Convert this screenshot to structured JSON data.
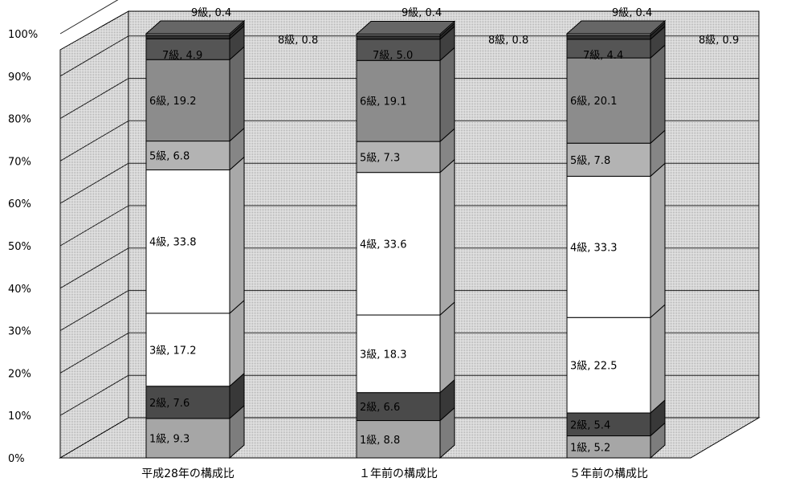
{
  "chart_data": {
    "type": "bar",
    "stacked": true,
    "three_d": true,
    "categories": [
      "平成28年の構成比",
      "１年前の構成比",
      "５年前の構成比"
    ],
    "y_ticks": [
      "0%",
      "10%",
      "20%",
      "30%",
      "40%",
      "50%",
      "60%",
      "70%",
      "80%",
      "90%",
      "100%"
    ],
    "ylim": [
      0,
      100
    ],
    "grid": true,
    "series": [
      {
        "name": "1級",
        "values": [
          9.3,
          8.8,
          5.2
        ],
        "labels": [
          "1級, 9.3",
          "1級, 8.8",
          "1級, 5.2"
        ]
      },
      {
        "name": "2級",
        "values": [
          7.6,
          6.6,
          5.4
        ],
        "labels": [
          "2級, 7.6",
          "2級, 6.6",
          "2級, 5.4"
        ]
      },
      {
        "name": "3級",
        "values": [
          17.2,
          18.3,
          22.5
        ],
        "labels": [
          "3級, 17.2",
          "3級, 18.3",
          "3級, 22.5"
        ]
      },
      {
        "name": "4級",
        "values": [
          33.8,
          33.6,
          33.3
        ],
        "labels": [
          "4級, 33.8",
          "4級, 33.6",
          "4級, 33.3"
        ]
      },
      {
        "name": "5級",
        "values": [
          6.8,
          7.3,
          7.8
        ],
        "labels": [
          "5級, 6.8",
          "5級, 7.3",
          "5級, 7.8"
        ]
      },
      {
        "name": "6級",
        "values": [
          19.2,
          19.1,
          20.1
        ],
        "labels": [
          "6級, 19.2",
          "6級, 19.1",
          "6級, 20.1"
        ]
      },
      {
        "name": "7級",
        "values": [
          4.9,
          5.0,
          4.4
        ],
        "labels": [
          "7級, 4.9",
          "7級, 5.0",
          "7級, 4.4"
        ]
      },
      {
        "name": "8級",
        "values": [
          0.8,
          0.8,
          0.9
        ],
        "labels": [
          "8級, 0.8",
          "8級, 0.8",
          "8級, 0.9"
        ]
      },
      {
        "name": "9級",
        "values": [
          0.4,
          0.4,
          0.4
        ],
        "labels": [
          "9級, 0.4",
          "9級, 0.4",
          "9級, 0.4"
        ]
      }
    ],
    "colors": {
      "1級": "#a6a6a6",
      "2級": "#4a4a4a",
      "3級": "#ffffff",
      "4級": "#ffffff",
      "5級": "#b3b3b3",
      "6級": "#8c8c8c",
      "7級": "#555555",
      "8級": "#333333",
      "9級": "#999999",
      "wall": "#d6d6d6",
      "floor": "#c4c4c4",
      "gridline": "#222222",
      "edge": "#000000"
    }
  }
}
